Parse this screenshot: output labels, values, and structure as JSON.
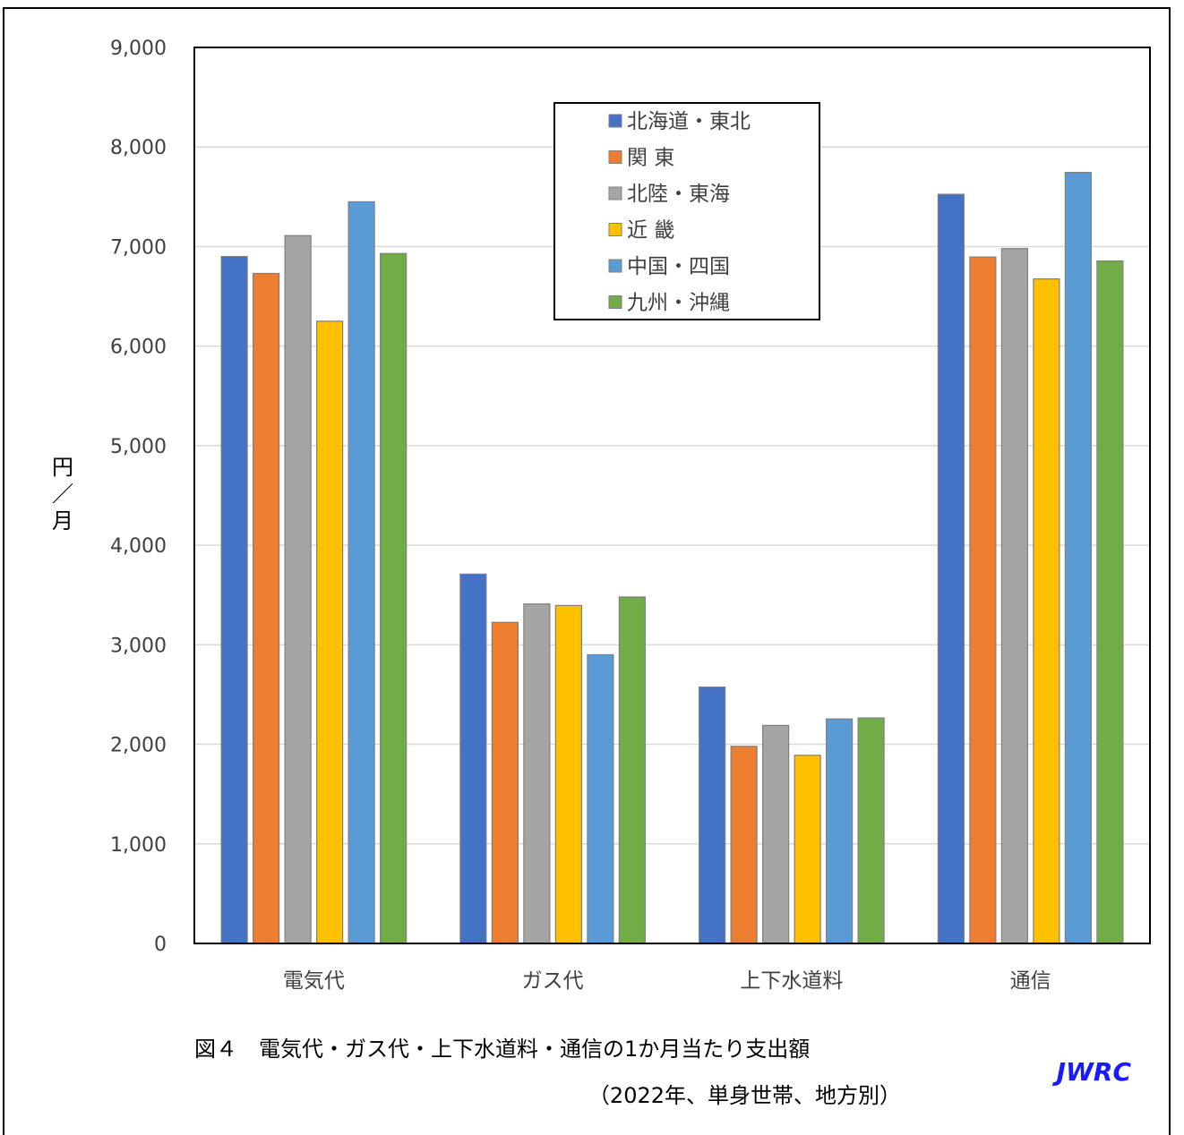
{
  "chart_data": {
    "type": "bar",
    "categories": [
      "電気代",
      "ガス代",
      "上下水道料",
      "通信"
    ],
    "series": [
      {
        "name": "北海道・東北",
        "color": "#4472C4",
        "values": [
          6900,
          3710,
          2575,
          7525
        ]
      },
      {
        "name": "関 東",
        "color": "#ED7D31",
        "values": [
          6730,
          3225,
          1980,
          6895
        ]
      },
      {
        "name": "北陸・東海",
        "color": "#A5A5A5",
        "values": [
          7110,
          3410,
          2190,
          6980
        ]
      },
      {
        "name": "近 畿",
        "color": "#FFC000",
        "values": [
          6250,
          3395,
          1890,
          6675
        ]
      },
      {
        "name": "中国・四国",
        "color": "#5B9BD5",
        "values": [
          7450,
          2900,
          2255,
          7745
        ]
      },
      {
        "name": "九州・沖縄",
        "color": "#70AD47",
        "values": [
          6930,
          3480,
          2265,
          6855
        ]
      }
    ],
    "ylim": [
      0,
      9000
    ],
    "yticks": [
      "0",
      "1,000",
      "2,000",
      "3,000",
      "4,000",
      "5,000",
      "6,000",
      "7,000",
      "8,000",
      "9,000"
    ],
    "ylabel": [
      "円",
      "／",
      "月"
    ],
    "xlabel": "",
    "grid": true,
    "legend_position": "top-center"
  },
  "caption": {
    "line1": "図４　電気代・ガス代・上下水道料・通信の1か月当たり支出額",
    "line2": "（2022年、単身世帯、地方別）"
  },
  "brand": "JWRC"
}
